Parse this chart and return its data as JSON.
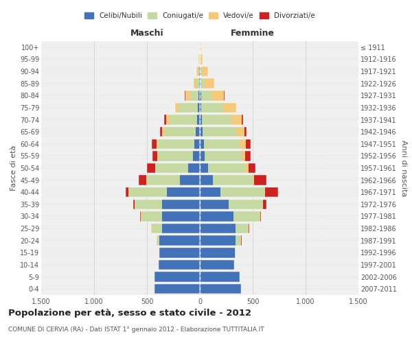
{
  "age_groups": [
    "0-4",
    "5-9",
    "10-14",
    "15-19",
    "20-24",
    "25-29",
    "30-34",
    "35-39",
    "40-44",
    "45-49",
    "50-54",
    "55-59",
    "60-64",
    "65-69",
    "70-74",
    "75-79",
    "80-84",
    "85-89",
    "90-94",
    "95-99",
    "100+"
  ],
  "birth_years": [
    "2007-2011",
    "2002-2006",
    "1997-2001",
    "1992-1996",
    "1987-1991",
    "1982-1986",
    "1977-1981",
    "1972-1976",
    "1967-1971",
    "1962-1966",
    "1957-1961",
    "1952-1956",
    "1947-1951",
    "1942-1946",
    "1937-1941",
    "1932-1936",
    "1927-1931",
    "1922-1926",
    "1917-1921",
    "1912-1916",
    "≤ 1911"
  ],
  "colors": {
    "celibi": "#4472b8",
    "coniugati": "#c5d9a0",
    "vedovi": "#f5c97a",
    "divorziati": "#cc2222"
  },
  "maschi": {
    "celibi": [
      430,
      430,
      390,
      380,
      380,
      360,
      360,
      360,
      310,
      190,
      110,
      65,
      55,
      38,
      28,
      18,
      10,
      5,
      4,
      3,
      2
    ],
    "coniugati": [
      0,
      0,
      2,
      3,
      25,
      95,
      195,
      255,
      360,
      310,
      310,
      330,
      340,
      300,
      260,
      185,
      80,
      28,
      12,
      3,
      0
    ],
    "vedovi": [
      0,
      0,
      0,
      0,
      2,
      3,
      5,
      5,
      5,
      5,
      5,
      8,
      12,
      18,
      28,
      28,
      45,
      28,
      14,
      5,
      4
    ],
    "divorziati": [
      0,
      0,
      0,
      0,
      5,
      5,
      8,
      10,
      28,
      75,
      75,
      48,
      48,
      18,
      22,
      5,
      5,
      0,
      0,
      0,
      0
    ]
  },
  "femmine": {
    "celibi": [
      390,
      375,
      325,
      330,
      340,
      340,
      320,
      275,
      195,
      125,
      75,
      48,
      38,
      28,
      18,
      15,
      10,
      8,
      4,
      3,
      2
    ],
    "coniugati": [
      0,
      0,
      2,
      5,
      48,
      115,
      245,
      320,
      415,
      375,
      355,
      345,
      338,
      315,
      278,
      208,
      98,
      38,
      14,
      4,
      0
    ],
    "vedovi": [
      0,
      0,
      0,
      0,
      3,
      5,
      5,
      5,
      5,
      10,
      28,
      38,
      58,
      78,
      98,
      118,
      118,
      88,
      58,
      18,
      10
    ],
    "divorziati": [
      0,
      0,
      0,
      0,
      5,
      5,
      10,
      28,
      125,
      118,
      68,
      48,
      48,
      18,
      18,
      5,
      5,
      0,
      0,
      0,
      0
    ]
  },
  "title": "Popolazione per età, sesso e stato civile - 2012",
  "subtitle": "COMUNE DI CERVIA (RA) - Dati ISTAT 1° gennaio 2012 - Elaborazione TUTTITALIA.IT",
  "xlabel_maschi": "Maschi",
  "xlabel_femmine": "Femmine",
  "ylabel_left": "Fasce di età",
  "ylabel_right": "Anni di nascita",
  "xlim": 1500,
  "legend_labels": [
    "Celibi/Nubili",
    "Coniugati/e",
    "Vedovi/e",
    "Divorziati/e"
  ],
  "background_color": "#ffffff",
  "grid_color": "#cccccc"
}
